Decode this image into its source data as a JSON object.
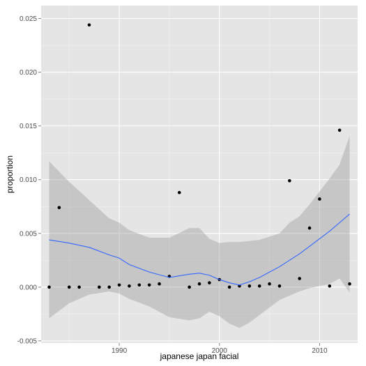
{
  "chart_data": {
    "type": "scatter",
    "title": "",
    "xlabel": "japanese japan facial",
    "ylabel": "proportion",
    "xlim": [
      1982.2,
      2013.8
    ],
    "ylim": [
      -0.0052,
      0.0262
    ],
    "x_ticks": [
      1990,
      2000,
      2010
    ],
    "x_tick_labels": [
      "1990",
      "2000",
      "2010"
    ],
    "y_ticks": [
      -0.005,
      0.0,
      0.005,
      0.01,
      0.015,
      0.02,
      0.025
    ],
    "y_tick_labels": [
      "-0.005",
      "0.000",
      "0.005",
      "0.010",
      "0.015",
      "0.020",
      "0.025"
    ],
    "grid": true,
    "points": {
      "x": [
        1983,
        1984,
        1985,
        1986,
        1987,
        1988,
        1989,
        1990,
        1991,
        1992,
        1993,
        1994,
        1995,
        1996,
        1997,
        1998,
        1999,
        2000,
        2001,
        2002,
        2003,
        2004,
        2005,
        2006,
        2007,
        2008,
        2009,
        2010,
        2011,
        2012,
        2013
      ],
      "y": [
        0.0,
        0.0074,
        0.0,
        0.0,
        0.0244,
        0.0,
        0.0,
        0.0002,
        0.0001,
        0.0002,
        0.0002,
        0.0003,
        0.001,
        0.0088,
        0.0,
        0.0003,
        0.0004,
        0.0007,
        0.0,
        0.0001,
        0.0001,
        0.0001,
        0.0003,
        0.0001,
        0.0099,
        0.0008,
        0.0055,
        0.0082,
        0.0001,
        0.0146,
        0.0003
      ]
    },
    "smooth": {
      "x": [
        1983,
        1985,
        1987,
        1989,
        1990,
        1991,
        1993,
        1995,
        1997,
        1998,
        1999,
        2000,
        2001,
        2002,
        2003,
        2004,
        2005,
        2006,
        2007,
        2008,
        2009,
        2010,
        2011,
        2012,
        2013
      ],
      "y": [
        0.0044,
        0.0041,
        0.0037,
        0.003,
        0.0027,
        0.0021,
        0.0014,
        0.0009,
        0.0012,
        0.0013,
        0.0011,
        0.0007,
        0.0004,
        0.0002,
        0.0005,
        0.0009,
        0.0014,
        0.0019,
        0.0025,
        0.0031,
        0.0038,
        0.0045,
        0.0052,
        0.006,
        0.0068
      ],
      "ci_low": [
        -0.0029,
        -0.0015,
        -0.0007,
        -0.0004,
        -0.0006,
        -0.0011,
        -0.0018,
        -0.0028,
        -0.0031,
        -0.0029,
        -0.0023,
        -0.0027,
        -0.0034,
        -0.0038,
        -0.0033,
        -0.0026,
        -0.0019,
        -0.0012,
        -0.0008,
        -0.0004,
        -0.0001,
        0.0001,
        0.0003,
        0.0008,
        -0.0005
      ],
      "ci_high": [
        0.0117,
        0.0098,
        0.0081,
        0.0064,
        0.006,
        0.0053,
        0.0046,
        0.0046,
        0.0055,
        0.0055,
        0.0045,
        0.0041,
        0.0042,
        0.0042,
        0.0043,
        0.0044,
        0.0047,
        0.005,
        0.006,
        0.0066,
        0.0077,
        0.0089,
        0.0101,
        0.0114,
        0.0141
      ]
    },
    "colors": {
      "panel": "#e5e5e5",
      "grid_major": "#ffffff",
      "grid_minor": "#f2f2f2",
      "point": "#000000",
      "line": "#3366ff",
      "band": "#999999"
    }
  }
}
